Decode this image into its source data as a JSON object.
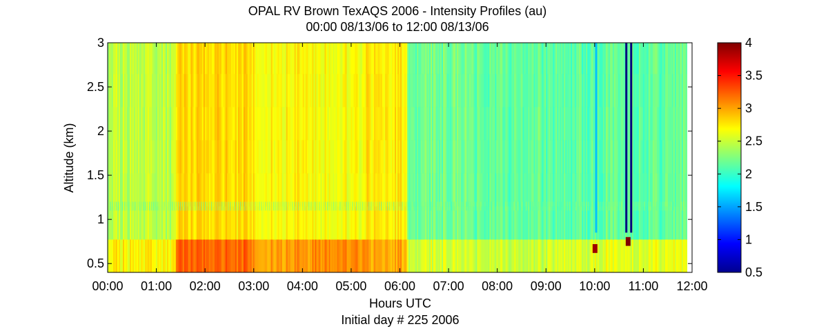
{
  "chart_data": {
    "type": "heatmap",
    "title": "OPAL RV Brown TexAQS 2006 - Intensity Profiles (au)",
    "subtitle": "00:00 08/13/06 to 12:00 08/13/06",
    "xlabel": "Hours UTC",
    "xlabel2": "Initial day # 225  2006",
    "ylabel": "Altitude (km)",
    "xlim": [
      0,
      12
    ],
    "ylim": [
      0.4,
      3
    ],
    "x_ticks": [
      {
        "value": 0,
        "label": "00:00"
      },
      {
        "value": 1,
        "label": "01:00"
      },
      {
        "value": 2,
        "label": "02:00"
      },
      {
        "value": 3,
        "label": "03:00"
      },
      {
        "value": 4,
        "label": "04:00"
      },
      {
        "value": 5,
        "label": "05:00"
      },
      {
        "value": 6,
        "label": "06:00"
      },
      {
        "value": 7,
        "label": "07:00"
      },
      {
        "value": 8,
        "label": "08:00"
      },
      {
        "value": 9,
        "label": "09:00"
      },
      {
        "value": 10,
        "label": "10:00"
      },
      {
        "value": 11,
        "label": "11:00"
      },
      {
        "value": 12,
        "label": "12:00"
      }
    ],
    "y_ticks": [
      {
        "value": 0.5,
        "label": "0.5"
      },
      {
        "value": 1,
        "label": "1"
      },
      {
        "value": 1.5,
        "label": "1.5"
      },
      {
        "value": 2,
        "label": "2"
      },
      {
        "value": 2.5,
        "label": "2.5"
      },
      {
        "value": 3,
        "label": "3"
      }
    ],
    "colorbar": {
      "range": [
        0.5,
        4
      ],
      "colormap": "jet",
      "ticks": [
        {
          "value": 0.5,
          "label": "0.5"
        },
        {
          "value": 1,
          "label": "1"
        },
        {
          "value": 1.5,
          "label": "1.5"
        },
        {
          "value": 2,
          "label": "2"
        },
        {
          "value": 2.5,
          "label": "2.5"
        },
        {
          "value": 3,
          "label": "3"
        },
        {
          "value": 3.5,
          "label": "3.5"
        },
        {
          "value": 4,
          "label": "4"
        }
      ]
    },
    "data_extent_hours": [
      0,
      11.88
    ],
    "columns": [
      {
        "from": 0.0,
        "to": 1.4,
        "base": 2.45,
        "surface": 2.7
      },
      {
        "from": 1.4,
        "to": 2.9,
        "base": 2.8,
        "surface": 3.2
      },
      {
        "from": 2.9,
        "to": 4.2,
        "base": 2.72,
        "surface": 3.05
      },
      {
        "from": 4.2,
        "to": 5.3,
        "base": 2.68,
        "surface": 3.1
      },
      {
        "from": 5.3,
        "to": 6.15,
        "base": 2.75,
        "surface": 3.0
      },
      {
        "from": 6.15,
        "to": 7.5,
        "base": 2.2,
        "surface": 2.55
      },
      {
        "from": 7.5,
        "to": 9.0,
        "base": 2.15,
        "surface": 2.5
      },
      {
        "from": 9.0,
        "to": 10.0,
        "base": 2.12,
        "surface": 2.55
      },
      {
        "from": 10.0,
        "to": 11.88,
        "base": 2.15,
        "surface": 2.6
      }
    ],
    "dropouts": [
      {
        "x": 10.03,
        "value": 1.6
      },
      {
        "x": 10.65,
        "value": 0.5
      },
      {
        "x": 10.75,
        "value": 0.5
      }
    ],
    "cloud_features": [
      {
        "x": 10.68,
        "altitude": 0.75,
        "value": 4
      },
      {
        "x": 10.0,
        "altitude": 0.67,
        "value": 3.9
      }
    ]
  }
}
